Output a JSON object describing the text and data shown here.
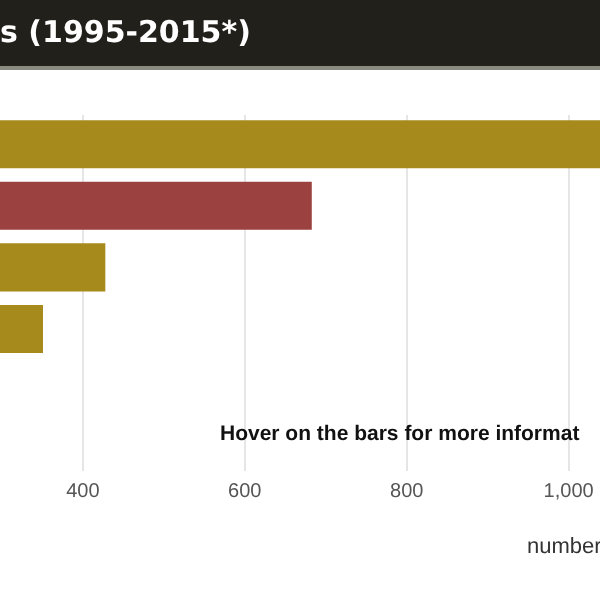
{
  "chart_data": {
    "type": "bar",
    "orientation": "horizontal",
    "title": "s (1995-2015*)",
    "xlabel": "number",
    "categories": [
      null,
      null,
      null,
      null
    ],
    "values": [
      1040,
      684,
      429,
      352
    ],
    "colors": [
      "#a68a1c",
      "#9b4140",
      "#a68a1c",
      "#a68a1c"
    ],
    "xlim": [
      0,
      1040
    ],
    "xticks": [
      {
        "value": 400,
        "label": "400"
      },
      {
        "value": 600,
        "label": "600"
      },
      {
        "value": 800,
        "label": "800"
      },
      {
        "value": 1000,
        "label": "1,000"
      }
    ],
    "grid": "x",
    "annotations": [
      "Hover on the bars for more informat"
    ]
  }
}
